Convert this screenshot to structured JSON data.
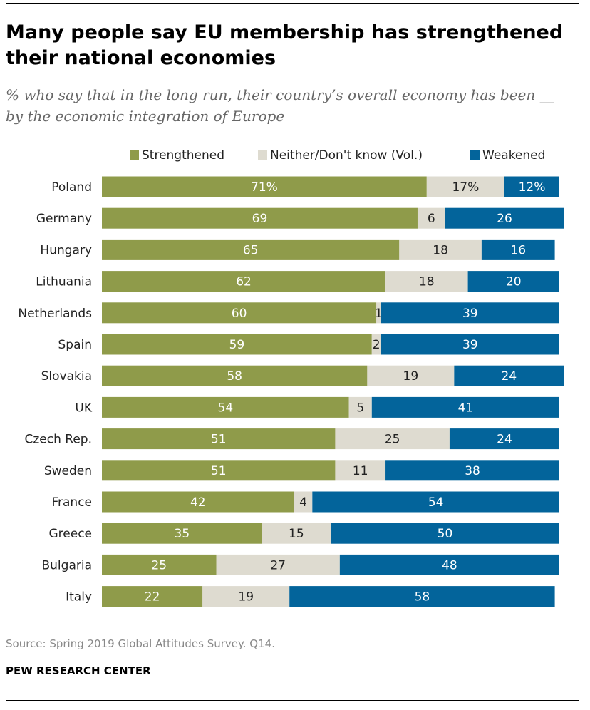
{
  "chart_data": {
    "type": "bar",
    "orientation": "horizontal",
    "stacked": true,
    "title": "Many people say EU membership has strengthened their national economies",
    "subtitle": "% who say that in the long run, their country’s overall economy has been __ by the economic integration of Europe",
    "categories": [
      "Poland",
      "Germany",
      "Hungary",
      "Lithuania",
      "Netherlands",
      "Spain",
      "Slovakia",
      "UK",
      "Czech Rep.",
      "Sweden",
      "France",
      "Greece",
      "Bulgaria",
      "Italy"
    ],
    "series": [
      {
        "name": "Strengthened",
        "color": "#8f9b4a",
        "label_color": "#ffffff",
        "values": [
          71,
          69,
          65,
          62,
          60,
          59,
          58,
          54,
          51,
          51,
          42,
          35,
          25,
          22
        ],
        "labels": [
          "71%",
          "69",
          "65",
          "62",
          "60",
          "59",
          "58",
          "54",
          "51",
          "51",
          "42",
          "35",
          "25",
          "22"
        ]
      },
      {
        "name": "Neither/Don't know (Vol.)",
        "color": "#dedbd0",
        "label_color": "#222222",
        "values": [
          17,
          6,
          18,
          18,
          1,
          2,
          19,
          5,
          25,
          11,
          4,
          15,
          27,
          19
        ],
        "labels": [
          "17%",
          "6",
          "18",
          "18",
          "1",
          "2",
          "19",
          "5",
          "25",
          "11",
          "4",
          "15",
          "27",
          "19"
        ]
      },
      {
        "name": "Weakened",
        "color": "#03649b",
        "label_color": "#ffffff",
        "values": [
          12,
          26,
          16,
          20,
          39,
          39,
          24,
          41,
          24,
          38,
          54,
          50,
          48,
          58
        ],
        "labels": [
          "12%",
          "26",
          "16",
          "20",
          "39",
          "39",
          "24",
          "41",
          "24",
          "38",
          "54",
          "50",
          "48",
          "58"
        ]
      }
    ],
    "xlim": [
      0,
      100
    ],
    "grid": false,
    "legend": "top",
    "source": "Source: Spring 2019 Global Attitudes Survey. Q14.",
    "organization": "PEW RESEARCH CENTER"
  }
}
